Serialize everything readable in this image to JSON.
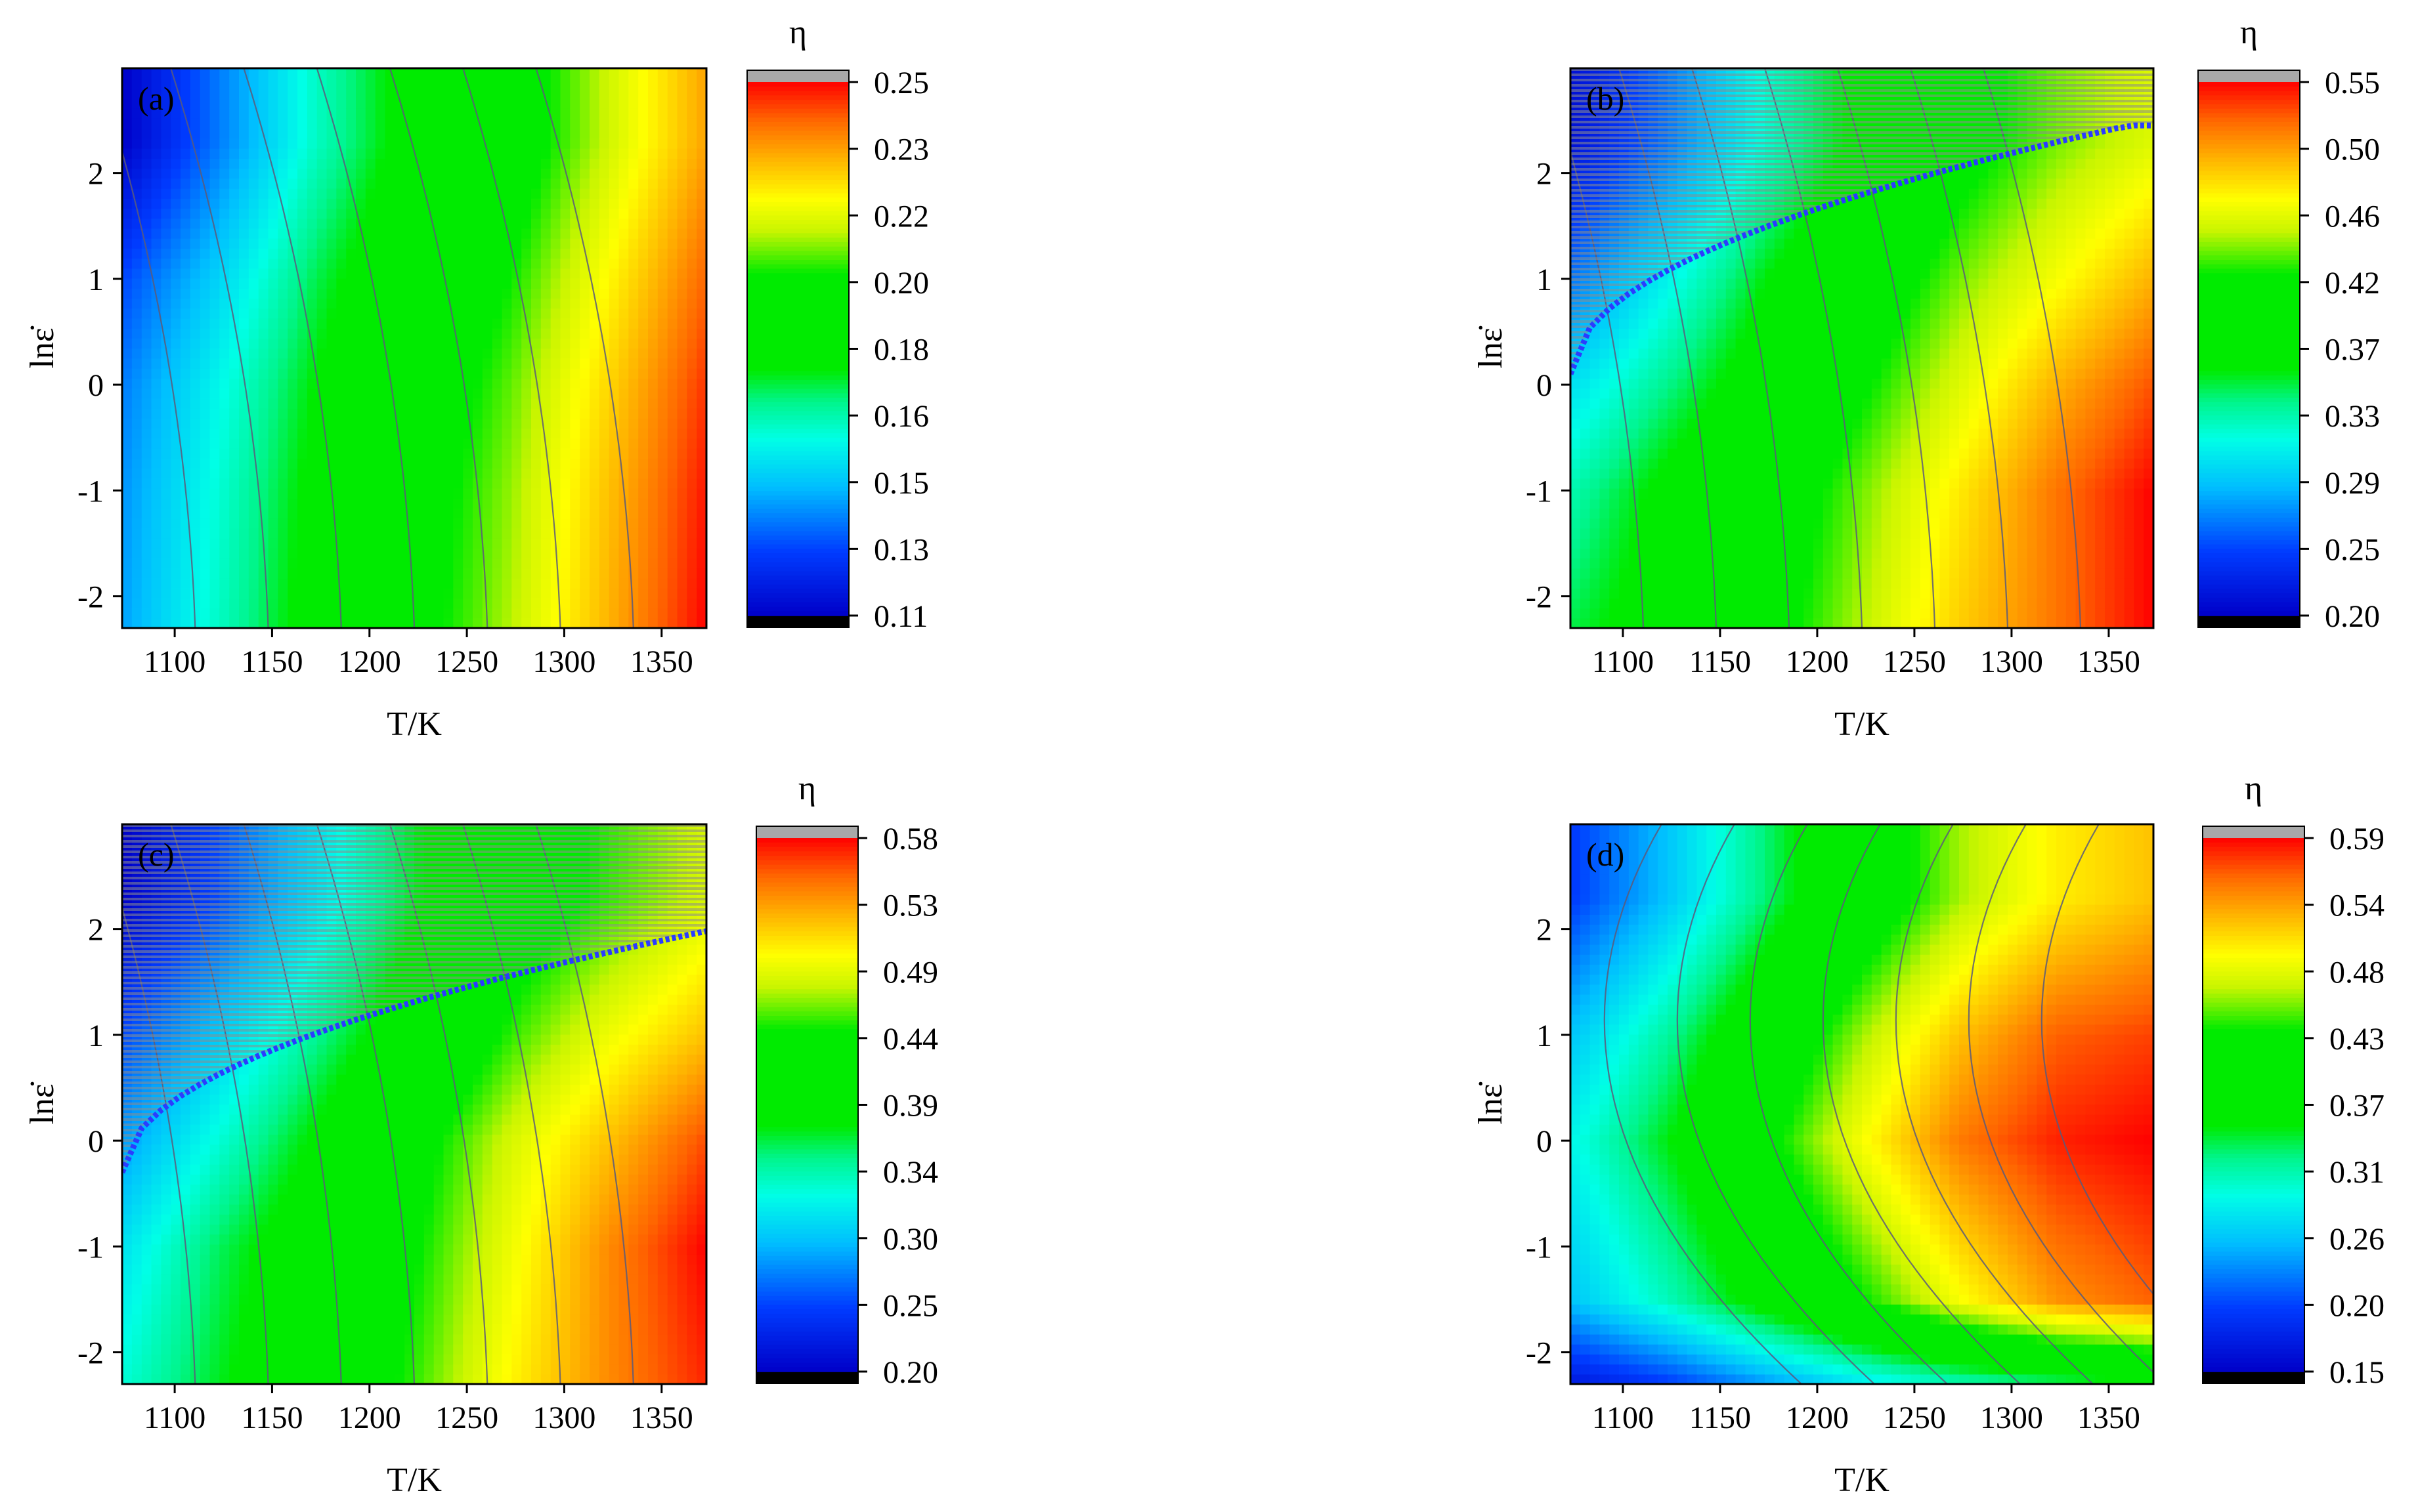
{
  "figure": {
    "panels": [
      {
        "label": "(a)",
        "colorbar_title": "η",
        "colorbar_ticks": [
          "0.25",
          "0.23",
          "0.22",
          "0.20",
          "0.18",
          "0.16",
          "0.15",
          "0.13",
          "0.11"
        ],
        "instability_region": false
      },
      {
        "label": "(b)",
        "colorbar_title": "η",
        "colorbar_ticks": [
          "0.55",
          "0.50",
          "0.46",
          "0.42",
          "0.37",
          "0.33",
          "0.29",
          "0.25",
          "0.20"
        ],
        "instability_region": true
      },
      {
        "label": "(c)",
        "colorbar_title": "η",
        "colorbar_ticks": [
          "0.58",
          "0.53",
          "0.49",
          "0.44",
          "0.39",
          "0.34",
          "0.30",
          "0.25",
          "0.20"
        ],
        "instability_region": true
      },
      {
        "label": "(d)",
        "colorbar_title": "η",
        "colorbar_ticks": [
          "0.59",
          "0.54",
          "0.48",
          "0.43",
          "0.37",
          "0.31",
          "0.26",
          "0.20",
          "0.15"
        ],
        "instability_region": false
      }
    ]
  },
  "chart_data": [
    {
      "type": "heatmap",
      "panel": "(a)",
      "xlabel": "T/K",
      "ylabel": "lnε̇",
      "colorbar_label": "η",
      "xlim": [
        1073,
        1373
      ],
      "ylim": [
        -2.3,
        2.99
      ],
      "x_ticks": [
        1100,
        1150,
        1200,
        1250,
        1300,
        1350
      ],
      "y_ticks": [
        -2,
        -1,
        0,
        1,
        2
      ],
      "colorbar_range": [
        0.11,
        0.25
      ],
      "x": [
        1073,
        1123,
        1173,
        1223,
        1273,
        1323,
        1373
      ],
      "y": [
        -2.3,
        -1,
        0,
        1,
        2.3
      ],
      "z": [
        [
          0.14,
          0.16,
          0.18,
          0.195,
          0.21,
          0.23,
          0.25
        ],
        [
          0.138,
          0.158,
          0.178,
          0.193,
          0.208,
          0.228,
          0.248
        ],
        [
          0.135,
          0.155,
          0.175,
          0.19,
          0.205,
          0.225,
          0.245
        ],
        [
          0.128,
          0.148,
          0.17,
          0.187,
          0.2,
          0.22,
          0.24
        ],
        [
          0.11,
          0.135,
          0.16,
          0.18,
          0.192,
          0.212,
          0.232
        ]
      ]
    },
    {
      "type": "heatmap",
      "panel": "(b)",
      "xlabel": "T/K",
      "ylabel": "lnε̇",
      "colorbar_label": "η",
      "xlim": [
        1073,
        1373
      ],
      "ylim": [
        -2.3,
        2.99
      ],
      "x_ticks": [
        1100,
        1150,
        1200,
        1250,
        1300,
        1350
      ],
      "y_ticks": [
        -2,
        -1,
        0,
        1,
        2
      ],
      "colorbar_range": [
        0.2,
        0.55
      ],
      "x": [
        1073,
        1123,
        1173,
        1223,
        1273,
        1323,
        1373
      ],
      "y": [
        -2.3,
        -1,
        0,
        1,
        2.3
      ],
      "z": [
        [
          0.35,
          0.38,
          0.41,
          0.45,
          0.49,
          0.52,
          0.55
        ],
        [
          0.33,
          0.37,
          0.4,
          0.44,
          0.48,
          0.52,
          0.55
        ],
        [
          0.3,
          0.34,
          0.38,
          0.42,
          0.46,
          0.5,
          0.53
        ],
        [
          0.26,
          0.31,
          0.36,
          0.4,
          0.44,
          0.47,
          0.5
        ],
        [
          0.21,
          0.26,
          0.32,
          0.37,
          0.41,
          0.44,
          0.46
        ]
      ]
    },
    {
      "type": "heatmap",
      "panel": "(c)",
      "xlabel": "T/K",
      "ylabel": "lnε̇",
      "colorbar_label": "η",
      "xlim": [
        1073,
        1373
      ],
      "ylim": [
        -2.3,
        2.99
      ],
      "x_ticks": [
        1100,
        1150,
        1200,
        1250,
        1300,
        1350
      ],
      "y_ticks": [
        -2,
        -1,
        0,
        1,
        2
      ],
      "colorbar_range": [
        0.2,
        0.58
      ],
      "x": [
        1073,
        1123,
        1173,
        1223,
        1273,
        1323,
        1373
      ],
      "y": [
        -2.3,
        -1,
        0,
        1,
        2.3
      ],
      "z": [
        [
          0.33,
          0.37,
          0.41,
          0.45,
          0.5,
          0.54,
          0.57
        ],
        [
          0.31,
          0.36,
          0.4,
          0.44,
          0.49,
          0.54,
          0.58
        ],
        [
          0.28,
          0.33,
          0.38,
          0.43,
          0.48,
          0.52,
          0.56
        ],
        [
          0.25,
          0.3,
          0.35,
          0.4,
          0.45,
          0.49,
          0.52
        ],
        [
          0.2,
          0.25,
          0.31,
          0.37,
          0.42,
          0.45,
          0.48
        ]
      ]
    },
    {
      "type": "heatmap",
      "panel": "(d)",
      "xlabel": "T/K",
      "ylabel": "lnε̇",
      "colorbar_label": "η",
      "xlim": [
        1073,
        1373
      ],
      "ylim": [
        -2.3,
        2.99
      ],
      "x_ticks": [
        1100,
        1150,
        1200,
        1250,
        1300,
        1350
      ],
      "y_ticks": [
        -2,
        -1,
        0,
        1,
        2
      ],
      "colorbar_range": [
        0.15,
        0.59
      ],
      "x": [
        1073,
        1123,
        1173,
        1223,
        1273,
        1323,
        1373
      ],
      "y": [
        -2.3,
        -1.5,
        0,
        1,
        2.3
      ],
      "z": [
        [
          0.17,
          0.2,
          0.24,
          0.28,
          0.31,
          0.33,
          0.35
        ],
        [
          0.26,
          0.31,
          0.37,
          0.43,
          0.49,
          0.54,
          0.56
        ],
        [
          0.29,
          0.35,
          0.42,
          0.49,
          0.55,
          0.58,
          0.59
        ],
        [
          0.26,
          0.32,
          0.39,
          0.46,
          0.52,
          0.56,
          0.57
        ],
        [
          0.2,
          0.26,
          0.33,
          0.4,
          0.46,
          0.5,
          0.52
        ]
      ]
    }
  ]
}
